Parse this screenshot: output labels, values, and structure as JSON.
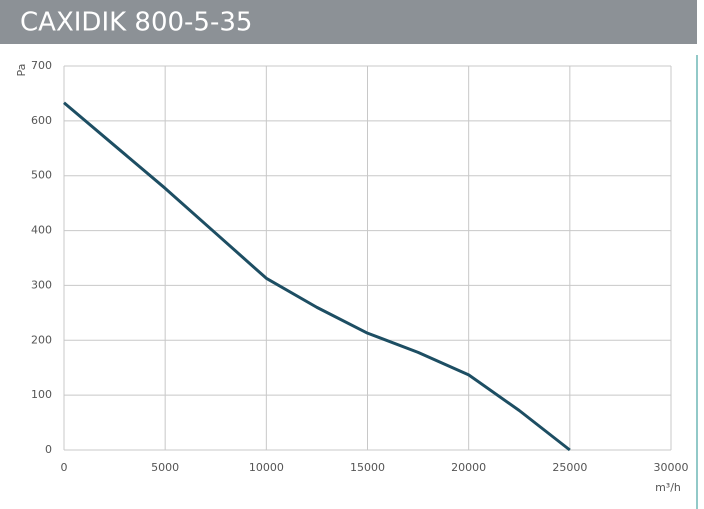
{
  "chart_data": {
    "type": "line",
    "title": "CAXIDIK 800-5-35",
    "x_label": "m³/h",
    "y_label": "Pa",
    "x": [
      0,
      2500,
      5000,
      7500,
      10000,
      12500,
      15000,
      17500,
      20000,
      22500,
      25000
    ],
    "series": [
      {
        "name": "CAXIDIK 800-5-35",
        "color": "#1d4e63",
        "values": [
          633,
          555,
          477,
          395,
          313,
          260,
          213,
          178,
          137,
          72,
          0
        ]
      }
    ],
    "xlim": [
      0,
      30000
    ],
    "xticks": [
      0,
      5000,
      10000,
      15000,
      20000,
      25000,
      30000
    ],
    "ylim": [
      0,
      700
    ],
    "yticks": [
      0,
      100,
      200,
      300,
      400,
      500,
      600,
      700
    ],
    "grid": true
  }
}
